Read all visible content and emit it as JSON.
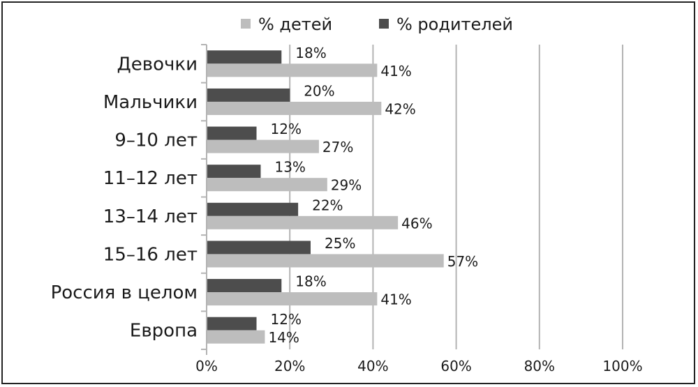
{
  "chart_data": {
    "type": "bar",
    "orientation": "horizontal",
    "categories": [
      "Девочки",
      "Мальчики",
      "9–10 лет",
      "11–12 лет",
      "13–14 лет",
      "15–16 лет",
      "Россия в целом",
      "Европа"
    ],
    "series": [
      {
        "name": "% детей",
        "color": "#bdbdbd",
        "values": [
          41,
          42,
          27,
          29,
          46,
          57,
          41,
          14
        ]
      },
      {
        "name": "% родителей",
        "color": "#4d4d4d",
        "values": [
          18,
          20,
          12,
          13,
          22,
          25,
          18,
          12
        ]
      }
    ],
    "data_labels": {
      "% детей": [
        "41%",
        "42%",
        "27%",
        "29%",
        "46%",
        "57%",
        "41%",
        "14%"
      ],
      "% родителей": [
        "18%",
        "20%",
        "12%",
        "13%",
        "22%",
        "25%",
        "18%",
        "12%"
      ]
    },
    "x_ticks": [
      "0%",
      "20%",
      "40%",
      "60%",
      "80%",
      "100%"
    ],
    "xlim": [
      0,
      100
    ],
    "grid": true,
    "legend_position": "top"
  }
}
